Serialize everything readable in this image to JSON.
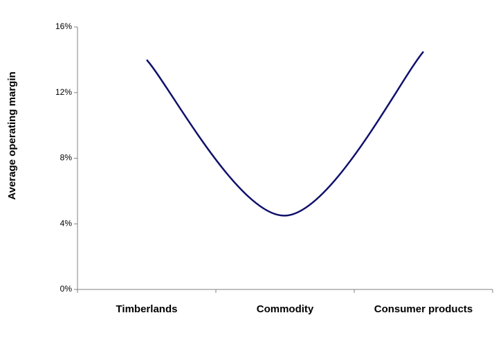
{
  "chart_data": {
    "type": "line",
    "y_label": "Average operating margin",
    "categories": [
      "Timberlands",
      "Commodity",
      "Consumer products"
    ],
    "series": [
      {
        "color": "#10106b",
        "values": [
          14,
          4.5,
          14.5
        ]
      }
    ],
    "smooth": true,
    "ylim": [
      0,
      16
    ],
    "yticks": [
      {
        "value": 0,
        "label": "0%"
      },
      {
        "value": 4,
        "label": "4%"
      },
      {
        "value": 8,
        "label": "8%"
      },
      {
        "value": 12,
        "label": "12%"
      },
      {
        "value": 16,
        "label": "16%"
      }
    ],
    "grid": false
  }
}
